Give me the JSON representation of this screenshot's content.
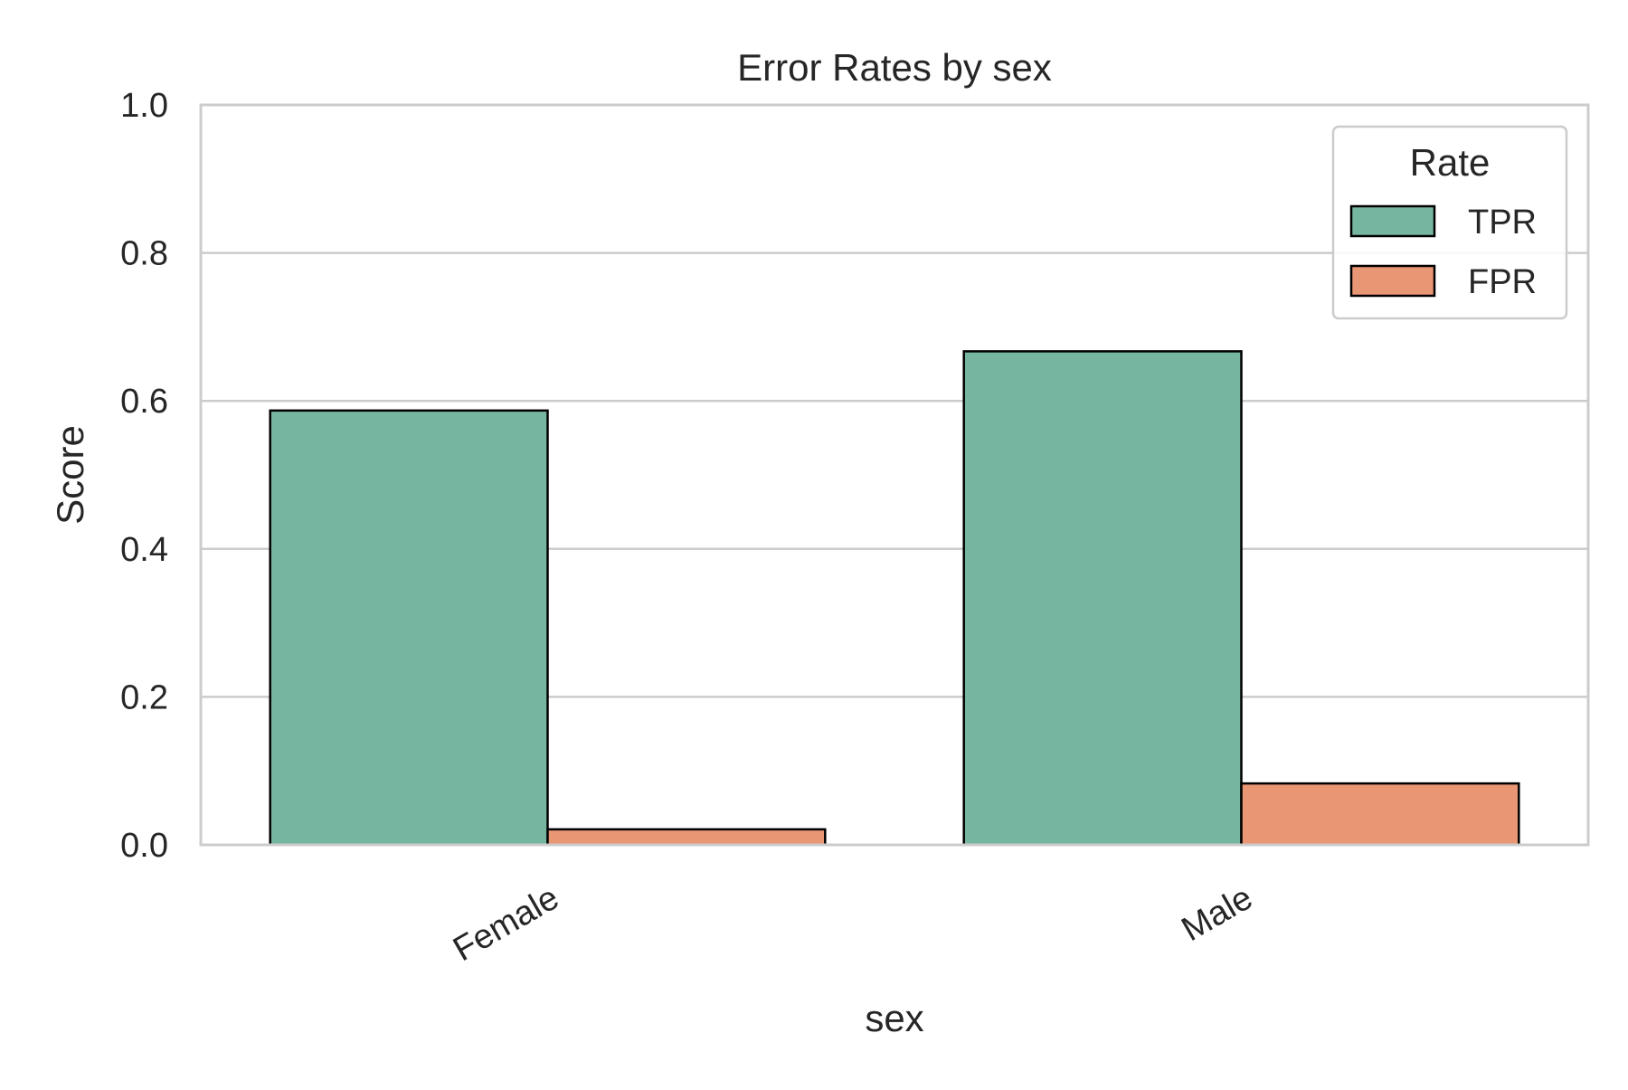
{
  "chart_data": {
    "type": "bar",
    "title": "Error Rates by sex",
    "xlabel": "sex",
    "ylabel": "Score",
    "ylim": [
      0,
      1.0
    ],
    "yticks": [
      "0.0",
      "0.2",
      "0.4",
      "0.6",
      "0.8",
      "1.0"
    ],
    "categories": [
      "Female",
      "Male"
    ],
    "series": [
      {
        "name": "TPR",
        "values": [
          0.587,
          0.667
        ],
        "color": "#76b5a0"
      },
      {
        "name": "FPR",
        "values": [
          0.021,
          0.083
        ],
        "color": "#e99674"
      }
    ],
    "legend": {
      "title": "Rate",
      "placement": "top-right"
    },
    "grid": true
  }
}
